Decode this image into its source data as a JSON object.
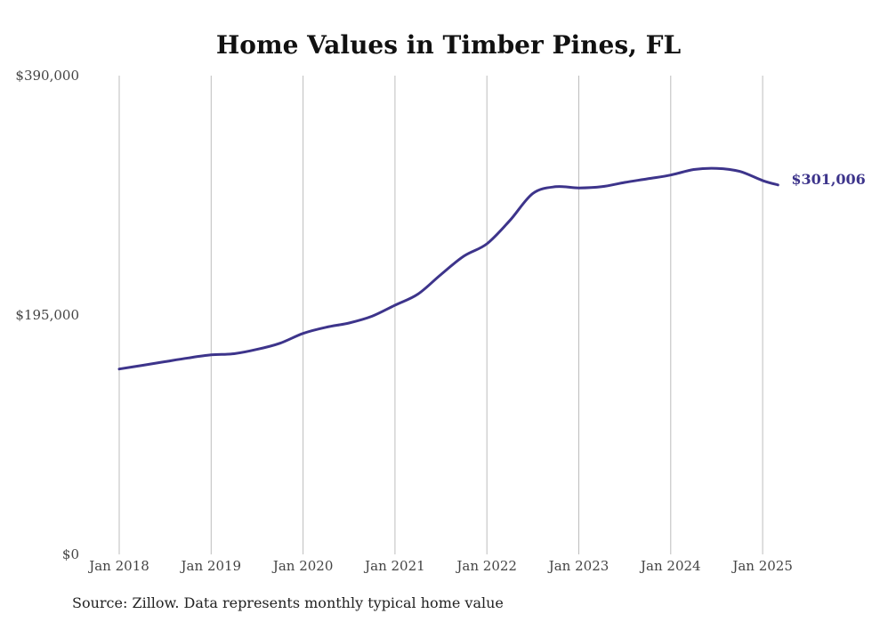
{
  "chart_data": {
    "type": "line",
    "title": "Home Values in Timber Pines, FL",
    "source": "Source: Zillow. Data represents monthly typical home value",
    "xlabel": "",
    "ylabel": "",
    "ylim": [
      0,
      390000
    ],
    "yticks": [
      {
        "value": 0,
        "label": "$0"
      },
      {
        "value": 195000,
        "label": "$195,000"
      },
      {
        "value": 390000,
        "label": "$390,000"
      }
    ],
    "xticks": [
      {
        "value": "2018-01",
        "label": "Jan 2018"
      },
      {
        "value": "2019-01",
        "label": "Jan 2019"
      },
      {
        "value": "2020-01",
        "label": "Jan 2020"
      },
      {
        "value": "2021-01",
        "label": "Jan 2021"
      },
      {
        "value": "2022-01",
        "label": "Jan 2022"
      },
      {
        "value": "2023-01",
        "label": "Jan 2023"
      },
      {
        "value": "2024-01",
        "label": "Jan 2024"
      },
      {
        "value": "2025-01",
        "label": "Jan 2025"
      }
    ],
    "grid": "vertical",
    "line_color": "#3d348b",
    "end_label": "$301,006",
    "series": [
      {
        "points": [
          {
            "x": "2018-01",
            "y": 151000
          },
          {
            "x": "2018-04",
            "y": 154000
          },
          {
            "x": "2018-07",
            "y": 157000
          },
          {
            "x": "2018-10",
            "y": 160000
          },
          {
            "x": "2019-01",
            "y": 162500
          },
          {
            "x": "2019-04",
            "y": 163500
          },
          {
            "x": "2019-07",
            "y": 167000
          },
          {
            "x": "2019-10",
            "y": 172000
          },
          {
            "x": "2020-01",
            "y": 180000
          },
          {
            "x": "2020-04",
            "y": 185000
          },
          {
            "x": "2020-07",
            "y": 188500
          },
          {
            "x": "2020-10",
            "y": 194000
          },
          {
            "x": "2021-01",
            "y": 203000
          },
          {
            "x": "2021-04",
            "y": 212000
          },
          {
            "x": "2021-07",
            "y": 228000
          },
          {
            "x": "2021-10",
            "y": 243000
          },
          {
            "x": "2022-01",
            "y": 253000
          },
          {
            "x": "2022-04",
            "y": 272000
          },
          {
            "x": "2022-07",
            "y": 294000
          },
          {
            "x": "2022-10",
            "y": 299500
          },
          {
            "x": "2023-01",
            "y": 298500
          },
          {
            "x": "2023-04",
            "y": 299500
          },
          {
            "x": "2023-07",
            "y": 303000
          },
          {
            "x": "2023-10",
            "y": 306000
          },
          {
            "x": "2024-01",
            "y": 309000
          },
          {
            "x": "2024-04",
            "y": 313500
          },
          {
            "x": "2024-07",
            "y": 314500
          },
          {
            "x": "2024-10",
            "y": 312000
          },
          {
            "x": "2025-01",
            "y": 304500
          },
          {
            "x": "2025-03",
            "y": 301006
          }
        ]
      }
    ]
  }
}
